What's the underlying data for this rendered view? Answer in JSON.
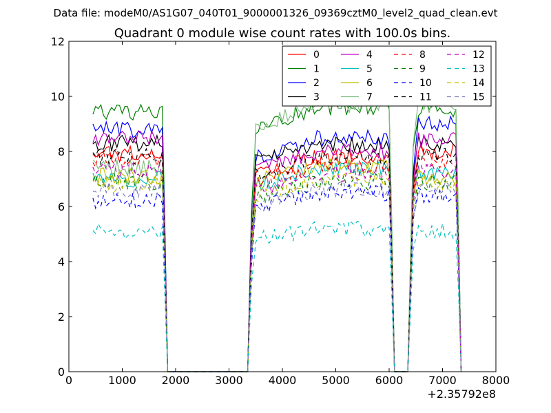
{
  "header": {
    "data_file": "Data file: modeM0/AS1G07_040T01_9000001326_09369cztM0_level2_quad_clean.evt"
  },
  "chart_data": {
    "type": "line",
    "title": "Quadrant 0 module wise count rates with 100.0s bins.",
    "xlabel": "",
    "ylabel": "",
    "x_offset_label": "+2.35792e8",
    "xlim": [
      0,
      8000
    ],
    "ylim": [
      0,
      12
    ],
    "x_ticks": [
      0,
      1000,
      2000,
      3000,
      4000,
      5000,
      6000,
      7000,
      8000
    ],
    "y_ticks": [
      0,
      2,
      4,
      6,
      8,
      10,
      12
    ],
    "x_tick_labels": [
      "0",
      "1000",
      "2000",
      "3000",
      "4000",
      "5000",
      "6000",
      "7000",
      "8000"
    ],
    "y_tick_labels": [
      "0",
      "2",
      "4",
      "6",
      "8",
      "10",
      "12"
    ],
    "legend_placement": "top-right",
    "segments": [
      {
        "start": 450,
        "end": 1750,
        "gap_start": 1850
      },
      {
        "start": 3500,
        "end": 6000,
        "gap_start": 6100
      },
      {
        "start": 6550,
        "end": 7250,
        "gap_start": 7350
      }
    ],
    "series": [
      {
        "name": "0",
        "color": "#ff0000",
        "dash": "solid",
        "levels": [
          7.9,
          7.8,
          8.0
        ]
      },
      {
        "name": "1",
        "color": "#008000",
        "dash": "solid",
        "levels": [
          9.4,
          9.6,
          9.5
        ]
      },
      {
        "name": "2",
        "color": "#0000ff",
        "dash": "solid",
        "levels": [
          8.8,
          8.5,
          9.0
        ]
      },
      {
        "name": "3",
        "color": "#000000",
        "dash": "solid",
        "levels": [
          8.3,
          8.3,
          8.3
        ]
      },
      {
        "name": "4",
        "color": "#bf00bf",
        "dash": "solid",
        "levels": [
          8.5,
          8.0,
          8.4
        ]
      },
      {
        "name": "5",
        "color": "#00bfbf",
        "dash": "solid",
        "levels": [
          7.0,
          7.4,
          7.2
        ]
      },
      {
        "name": "6",
        "color": "#bfbf00",
        "dash": "solid",
        "levels": [
          7.1,
          7.5,
          7.0
        ]
      },
      {
        "name": "7",
        "color": "#7fbf7f",
        "dash": "solid",
        "levels": [
          7.4,
          9.7,
          9.7
        ]
      },
      {
        "name": "8",
        "color": "#ff0000",
        "dash": "dashed",
        "levels": [
          7.7,
          7.5,
          7.6
        ]
      },
      {
        "name": "9",
        "color": "#008000",
        "dash": "dashed",
        "levels": [
          6.9,
          6.9,
          6.9
        ]
      },
      {
        "name": "10",
        "color": "#0000ff",
        "dash": "dashed",
        "levels": [
          6.2,
          6.5,
          6.4
        ]
      },
      {
        "name": "11",
        "color": "#000000",
        "dash": "dashed",
        "levels": [
          7.8,
          7.8,
          7.9
        ]
      },
      {
        "name": "12",
        "color": "#bf00bf",
        "dash": "dashed",
        "levels": [
          7.3,
          7.2,
          7.3
        ]
      },
      {
        "name": "13",
        "color": "#00bfbf",
        "dash": "dashed",
        "levels": [
          5.1,
          5.2,
          5.1
        ]
      },
      {
        "name": "14",
        "color": "#bfbf00",
        "dash": "dashed",
        "levels": [
          6.8,
          7.0,
          6.9
        ]
      },
      {
        "name": "15",
        "color": "#7f7fbf",
        "dash": "dashed",
        "levels": [
          6.6,
          6.6,
          6.7
        ]
      }
    ]
  }
}
